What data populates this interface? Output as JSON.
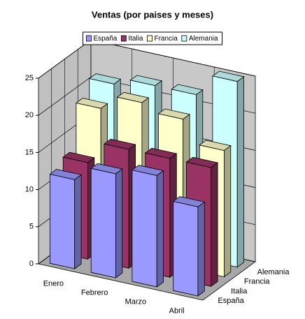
{
  "chart_data": {
    "type": "bar3d",
    "title": "Ventas (por paises y meses)",
    "categories": [
      "Enero",
      "Febrero",
      "Marzo",
      "Abril"
    ],
    "series": [
      {
        "name": "España",
        "color": "#9999ff",
        "values": [
          12,
          14,
          15,
          12
        ]
      },
      {
        "name": "Italia",
        "color": "#993366",
        "values": [
          13,
          16,
          16,
          16
        ]
      },
      {
        "name": "Francia",
        "color": "#ffffcc",
        "values": [
          19,
          21,
          20,
          17
        ]
      },
      {
        "name": "Alemania",
        "color": "#ccffff",
        "values": [
          21,
          22,
          22,
          25
        ]
      }
    ],
    "ylim": [
      0,
      25
    ],
    "yticks": [
      0,
      5,
      10,
      15,
      20,
      25
    ],
    "grid": true,
    "legend": "top"
  }
}
